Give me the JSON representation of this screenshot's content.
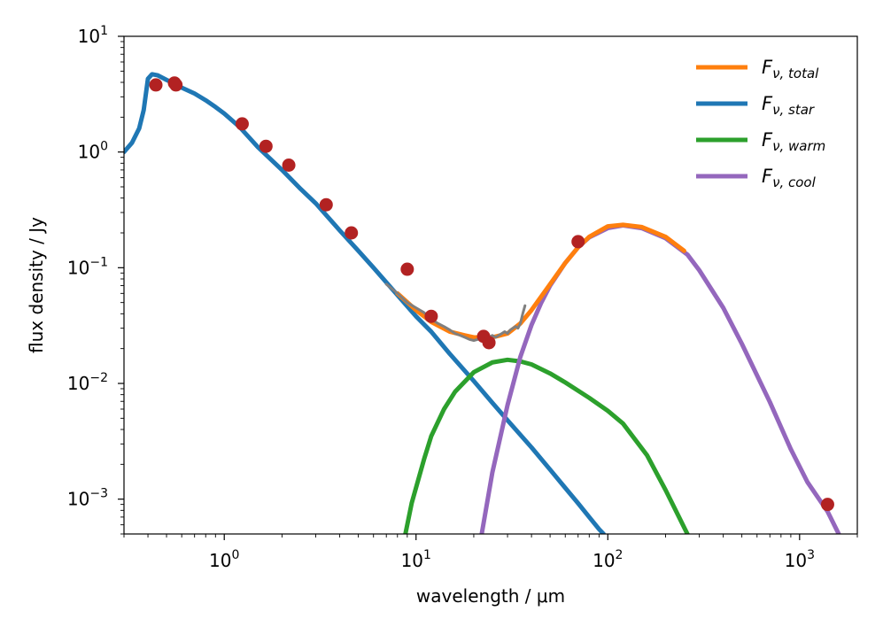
{
  "chart_data": {
    "type": "line",
    "xscale": "log",
    "yscale": "log",
    "xlabel": "wavelength / μm",
    "ylabel": "flux density / Jy",
    "xlim": [
      0.3,
      2000
    ],
    "ylim": [
      0.0005,
      10
    ],
    "grid": false,
    "legend_position": "top-right",
    "x_ticks": [
      {
        "value": 1,
        "base": "10",
        "exp": "0"
      },
      {
        "value": 10,
        "base": "10",
        "exp": "1"
      },
      {
        "value": 100,
        "base": "10",
        "exp": "2"
      },
      {
        "value": 1000,
        "base": "10",
        "exp": "3"
      }
    ],
    "y_ticks": [
      {
        "value": 10,
        "base": "10",
        "exp": "1"
      },
      {
        "value": 1,
        "base": "10",
        "exp": "0"
      },
      {
        "value": 0.1,
        "base": "10",
        "exp": "−1"
      },
      {
        "value": 0.01,
        "base": "10",
        "exp": "−2"
      },
      {
        "value": 0.001,
        "base": "10",
        "exp": "−3"
      }
    ],
    "legend": [
      {
        "symbol": "F",
        "greek": "ν",
        "sub": "total",
        "color": "#ff7f0e"
      },
      {
        "symbol": "F",
        "greek": "ν",
        "sub": "star",
        "color": "#1f77b4"
      },
      {
        "symbol": "F",
        "greek": "ν",
        "sub": "warm",
        "color": "#2ca02c"
      },
      {
        "symbol": "F",
        "greek": "ν",
        "sub": "cool",
        "color": "#9467bd"
      }
    ],
    "series": [
      {
        "name": "F_ν,star",
        "color": "#1f77b4",
        "x": [
          0.3,
          0.33,
          0.36,
          0.38,
          0.4,
          0.42,
          0.45,
          0.5,
          0.55,
          0.6,
          0.7,
          0.8,
          0.9,
          1.0,
          1.2,
          1.5,
          2.0,
          2.5,
          3.0,
          4.0,
          5.0,
          6.0,
          8.0,
          10,
          12,
          15,
          20,
          25,
          30,
          40,
          50,
          60,
          70,
          80,
          90,
          95
        ],
        "y": [
          1.0,
          1.2,
          1.6,
          2.3,
          4.3,
          4.7,
          4.6,
          4.2,
          3.9,
          3.6,
          3.2,
          2.8,
          2.45,
          2.15,
          1.65,
          1.1,
          0.7,
          0.48,
          0.36,
          0.21,
          0.14,
          0.1,
          0.058,
          0.038,
          0.028,
          0.018,
          0.0105,
          0.0068,
          0.0048,
          0.0028,
          0.0018,
          0.00125,
          0.00092,
          0.0007,
          0.00055,
          0.0005
        ]
      },
      {
        "name": "F_ν,total",
        "color": "#ff7f0e",
        "x": [
          8,
          10,
          12,
          15,
          18,
          20,
          25,
          30,
          35,
          40,
          50,
          60,
          70,
          80,
          100,
          120,
          150,
          200,
          250
        ],
        "y": [
          0.06,
          0.043,
          0.034,
          0.028,
          0.026,
          0.025,
          0.025,
          0.027,
          0.033,
          0.043,
          0.072,
          0.11,
          0.15,
          0.185,
          0.228,
          0.235,
          0.225,
          0.185,
          0.14
        ]
      },
      {
        "name": "F_ν,warm",
        "color": "#2ca02c",
        "x": [
          8.8,
          9.5,
          11,
          12,
          14,
          16,
          20,
          25,
          30,
          35,
          40,
          50,
          60,
          80,
          100,
          120,
          160,
          200,
          260
        ],
        "y": [
          0.0005,
          0.00093,
          0.0022,
          0.0035,
          0.006,
          0.0085,
          0.0125,
          0.0152,
          0.016,
          0.0155,
          0.0146,
          0.0122,
          0.0102,
          0.0075,
          0.0058,
          0.0045,
          0.0024,
          0.0012,
          0.0005
        ]
      },
      {
        "name": "F_ν,cool",
        "color": "#9467bd",
        "x": [
          22,
          25,
          30,
          35,
          40,
          45,
          50,
          60,
          70,
          80,
          100,
          120,
          150,
          200,
          260,
          300,
          400,
          500,
          700,
          900,
          1100,
          1400,
          1600
        ],
        "y": [
          0.0005,
          0.0017,
          0.0065,
          0.017,
          0.032,
          0.05,
          0.07,
          0.11,
          0.15,
          0.183,
          0.22,
          0.232,
          0.22,
          0.18,
          0.13,
          0.095,
          0.045,
          0.022,
          0.0069,
          0.0027,
          0.0014,
          0.00078,
          0.0005
        ]
      },
      {
        "name": "spectrum",
        "color": "#7f7f7f",
        "x": [
          7,
          8,
          9,
          10,
          11,
          12,
          13,
          14,
          15,
          16,
          17,
          18,
          19,
          20,
          21,
          22,
          23,
          24,
          25,
          26,
          27,
          28,
          29,
          30,
          31,
          32,
          33,
          34,
          35,
          36,
          37
        ],
        "y": [
          0.072,
          0.06,
          0.05,
          0.045,
          0.041,
          0.036,
          0.033,
          0.031,
          0.029,
          0.027,
          0.026,
          0.025,
          0.024,
          0.0235,
          0.024,
          0.025,
          0.024,
          0.025,
          0.026,
          0.025,
          0.026,
          0.027,
          0.028,
          0.027,
          0.029,
          0.03,
          0.031,
          0.03,
          0.033,
          0.04,
          0.047
        ]
      }
    ],
    "points": {
      "name": "photometry",
      "color": "#b22222",
      "x": [
        0.44,
        0.55,
        0.56,
        1.24,
        1.65,
        2.17,
        3.4,
        4.6,
        9.0,
        12.0,
        22.5,
        24.0,
        70,
        1400
      ],
      "y": [
        3.8,
        3.95,
        3.8,
        1.75,
        1.12,
        0.77,
        0.35,
        0.2,
        0.097,
        0.038,
        0.0255,
        0.0225,
        0.168,
        0.0009
      ]
    }
  }
}
